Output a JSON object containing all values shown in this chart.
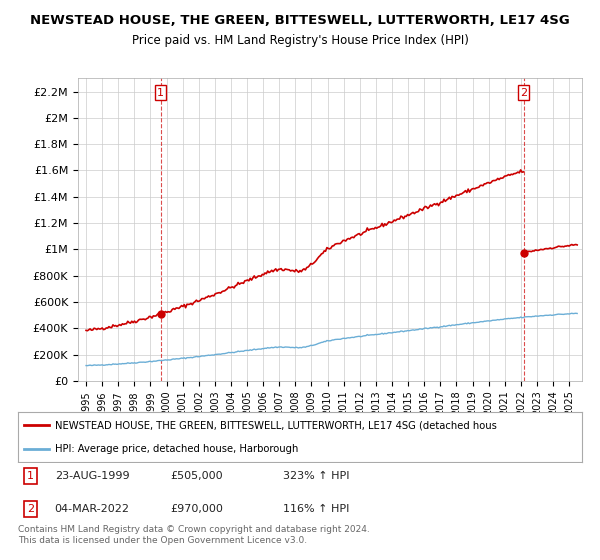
{
  "title_line1": "NEWSTEAD HOUSE, THE GREEN, BITTESWELL, LUTTERWORTH, LE17 4SG",
  "title_line2": "Price paid vs. HM Land Registry's House Price Index (HPI)",
  "ylabel_ticks": [
    "£0",
    "£200K",
    "£400K",
    "£600K",
    "£800K",
    "£1M",
    "£1.2M",
    "£1.4M",
    "£1.6M",
    "£1.8M",
    "£2M",
    "£2.2M"
  ],
  "ylabel_values": [
    0,
    200000,
    400000,
    600000,
    800000,
    1000000,
    1200000,
    1400000,
    1600000,
    1800000,
    2000000,
    2200000
  ],
  "ylim": [
    0,
    2300000
  ],
  "year_start": 1995,
  "year_end": 2025,
  "hpi_color": "#6baed6",
  "price_color": "#cc0000",
  "sale1_date": 1999.64,
  "sale1_price": 505000,
  "sale1_label": "1",
  "sale2_date": 2022.17,
  "sale2_price": 970000,
  "sale2_label": "2",
  "legend_line1": "NEWSTEAD HOUSE, THE GREEN, BITTESWELL, LUTTERWORTH, LE17 4SG (detached hous",
  "legend_line2": "HPI: Average price, detached house, Harborough",
  "annotation1_date": "23-AUG-1999",
  "annotation1_price": "£505,000",
  "annotation1_hpi": "323% ↑ HPI",
  "annotation2_date": "04-MAR-2022",
  "annotation2_price": "£970,000",
  "annotation2_hpi": "116% ↑ HPI",
  "footer": "Contains HM Land Registry data © Crown copyright and database right 2024.\nThis data is licensed under the Open Government Licence v3.0.",
  "background_color": "#ffffff",
  "grid_color": "#cccccc"
}
